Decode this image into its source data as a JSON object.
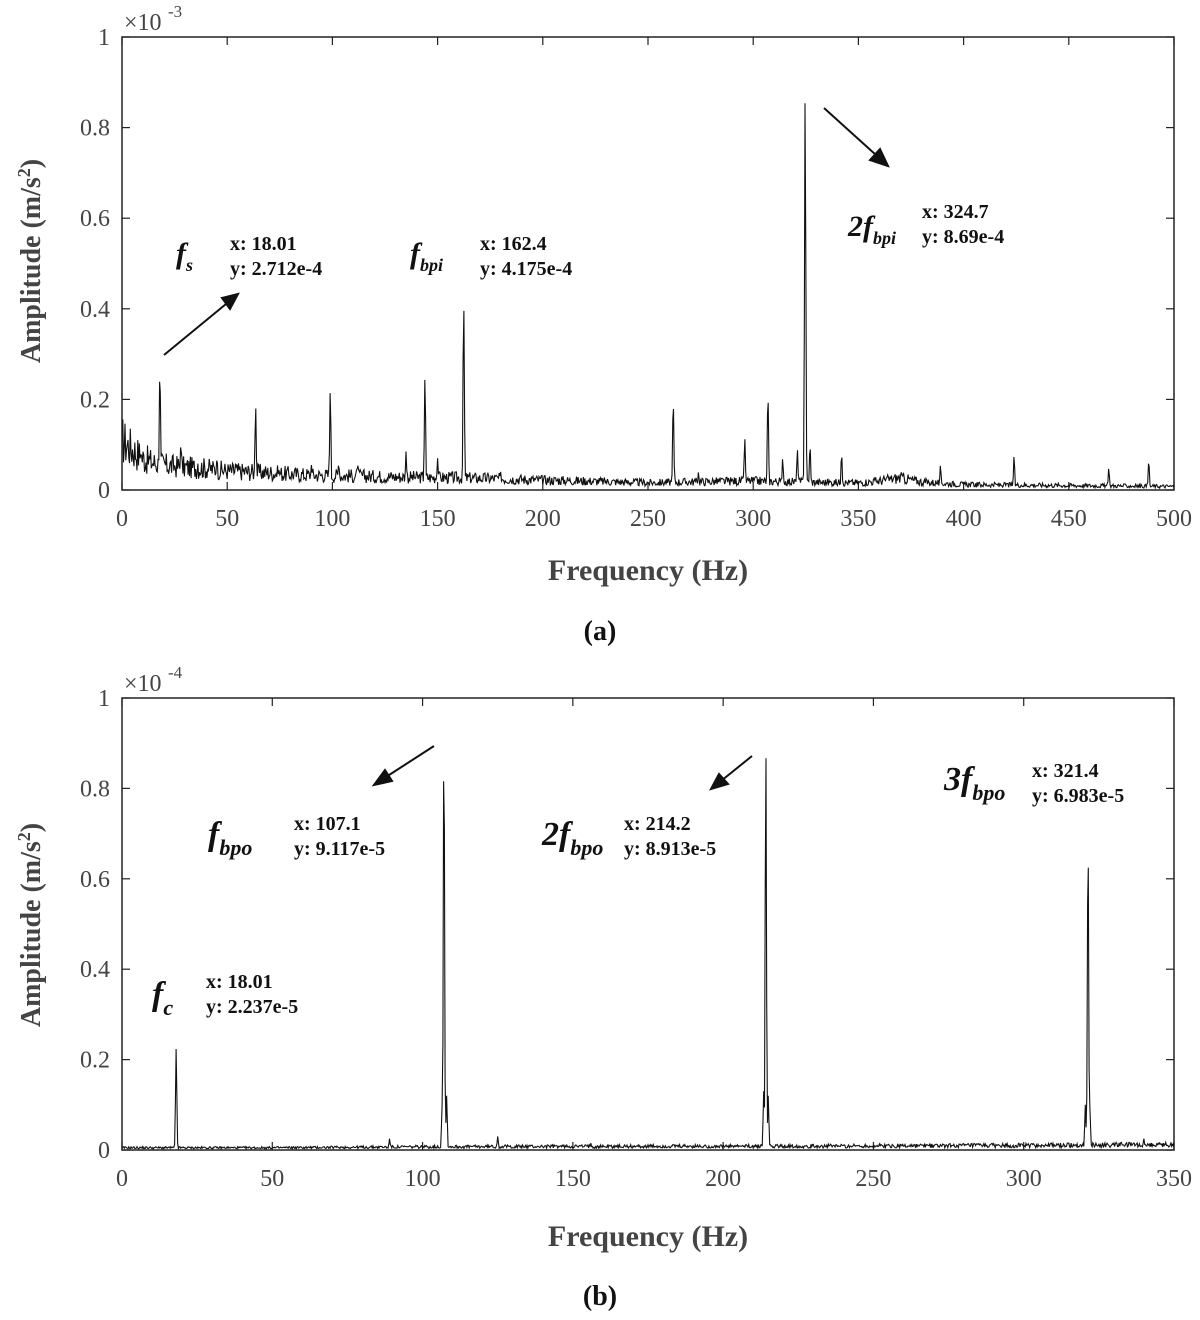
{
  "chart_data": [
    {
      "type": "line",
      "panel_label": "(a)",
      "xlabel": "Frequency (Hz)",
      "ylabel": "Amplitude (m/s²)",
      "ylabel_main": "Amplitude (m/s",
      "ylabel_sup": "2",
      "ylabel_end": ")",
      "exponent_label": "×10",
      "exponent_power": "-3",
      "xlim": [
        0,
        500
      ],
      "ylim": [
        0,
        1
      ],
      "xticks": [
        0,
        50,
        100,
        150,
        200,
        250,
        300,
        350,
        400,
        450,
        500
      ],
      "yticks": [
        0,
        0.2,
        0.4,
        0.6,
        0.8,
        1
      ],
      "ytick_labels": [
        "0",
        "0.2",
        "0.4",
        "0.6",
        "0.8",
        "1"
      ],
      "grid": false,
      "baseline_points": [
        [
          0,
          0.11
        ],
        [
          5,
          0.09
        ],
        [
          10,
          0.07
        ],
        [
          15,
          0.06
        ],
        [
          20,
          0.055
        ],
        [
          30,
          0.05
        ],
        [
          40,
          0.048
        ],
        [
          50,
          0.042
        ],
        [
          60,
          0.04
        ],
        [
          70,
          0.038
        ],
        [
          80,
          0.035
        ],
        [
          90,
          0.033
        ],
        [
          100,
          0.032
        ],
        [
          120,
          0.03
        ],
        [
          140,
          0.028
        ],
        [
          160,
          0.027
        ],
        [
          180,
          0.025
        ],
        [
          200,
          0.022
        ],
        [
          220,
          0.02
        ],
        [
          250,
          0.016
        ],
        [
          270,
          0.018
        ],
        [
          300,
          0.02
        ],
        [
          330,
          0.017
        ],
        [
          350,
          0.016
        ],
        [
          360,
          0.02
        ],
        [
          370,
          0.027
        ],
        [
          380,
          0.018
        ],
        [
          400,
          0.012
        ],
        [
          450,
          0.01
        ],
        [
          500,
          0.008
        ]
      ],
      "peaks": [
        [
          4,
          0.1
        ],
        [
          9,
          0.08
        ],
        [
          13,
          0.06
        ],
        [
          18.01,
          0.2712
        ],
        [
          28,
          0.105
        ],
        [
          36,
          0.06
        ],
        [
          45,
          0.065
        ],
        [
          54,
          0.06
        ],
        [
          63.5,
          0.185
        ],
        [
          74,
          0.055
        ],
        [
          90,
          0.055
        ],
        [
          99,
          0.22
        ],
        [
          103,
          0.06
        ],
        [
          112,
          0.06
        ],
        [
          135,
          0.085
        ],
        [
          144,
          0.25
        ],
        [
          150,
          0.07
        ],
        [
          162.4,
          0.4175
        ],
        [
          180,
          0.04
        ],
        [
          262,
          0.2
        ],
        [
          274,
          0.04
        ],
        [
          296,
          0.115
        ],
        [
          307,
          0.215
        ],
        [
          314,
          0.07
        ],
        [
          321,
          0.09
        ],
        [
          324.7,
          0.869
        ],
        [
          327,
          0.1
        ],
        [
          342,
          0.08
        ],
        [
          389,
          0.055
        ],
        [
          424,
          0.075
        ],
        [
          469,
          0.048
        ],
        [
          488,
          0.065
        ]
      ],
      "annotations": [
        {
          "symbol": "f",
          "sub": "s",
          "x": "x: 18.01",
          "y": "y: 2.712e-4"
        },
        {
          "symbol": "f",
          "sub": "bpi",
          "x": "x: 162.4",
          "y": "y: 4.175e-4"
        },
        {
          "symbol": "2f",
          "sub": "bpi",
          "x": "x: 324.7",
          "y": "y: 8.69e-4"
        }
      ]
    },
    {
      "type": "line",
      "panel_label": "(b)",
      "xlabel": "Frequency (Hz)",
      "ylabel": "Amplitude (m/s²)",
      "ylabel_main": "Amplitude (m/s",
      "ylabel_sup": "2",
      "ylabel_end": ")",
      "exponent_label": "×10",
      "exponent_power": "-4",
      "xlim": [
        0,
        350
      ],
      "ylim": [
        0,
        1
      ],
      "xticks": [
        0,
        50,
        100,
        150,
        200,
        250,
        300,
        350
      ],
      "yticks": [
        0,
        0.2,
        0.4,
        0.6,
        0.8,
        1
      ],
      "ytick_labels": [
        "0",
        "0.2",
        "0.4",
        "0.6",
        "0.8",
        "1"
      ],
      "grid": false,
      "baseline_points": [
        [
          0,
          0.005
        ],
        [
          50,
          0.005
        ],
        [
          100,
          0.007
        ],
        [
          150,
          0.008
        ],
        [
          200,
          0.008
        ],
        [
          250,
          0.009
        ],
        [
          300,
          0.01
        ],
        [
          350,
          0.012
        ]
      ],
      "peaks": [
        [
          18.01,
          0.2237
        ],
        [
          89,
          0.025
        ],
        [
          106.5,
          0.1
        ],
        [
          107.1,
          0.9117
        ],
        [
          108,
          0.12
        ],
        [
          125,
          0.03
        ],
        [
          156,
          0.015
        ],
        [
          213.5,
          0.13
        ],
        [
          214.2,
          0.8913
        ],
        [
          215,
          0.12
        ],
        [
          320.5,
          0.1
        ],
        [
          321.4,
          0.6983
        ],
        [
          322,
          0.1
        ],
        [
          340,
          0.025
        ]
      ],
      "annotations": [
        {
          "symbol": "f",
          "sub": "c",
          "x": "x: 18.01",
          "y": "y: 2.237e-5"
        },
        {
          "symbol": "f",
          "sub": "bpo",
          "x": "x: 107.1",
          "y": "y: 9.117e-5"
        },
        {
          "symbol": "2f",
          "sub": "bpo",
          "x": "x: 214.2",
          "y": "y: 8.913e-5"
        },
        {
          "symbol": "3f",
          "sub": "bpo",
          "x": "x: 321.4",
          "y": "y: 6.983e-5"
        }
      ]
    }
  ]
}
